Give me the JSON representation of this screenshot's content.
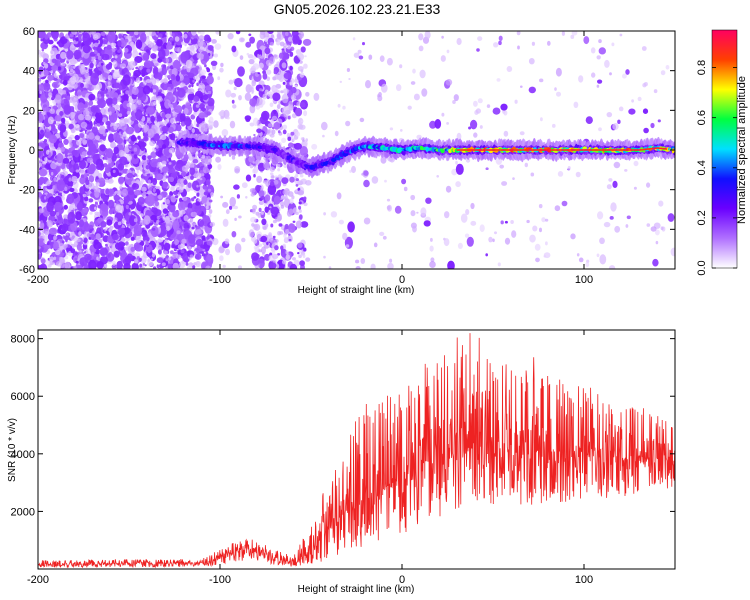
{
  "title": "GN05.2026.102.23.21.E33",
  "chart_data": [
    {
      "type": "heatmap",
      "xlabel": "Height of straight line (km)",
      "ylabel": "Frequency (Hz)",
      "xlim": [
        -200,
        150
      ],
      "ylim": [
        -60,
        60
      ],
      "x_ticks": [
        -200,
        -100,
        0,
        100
      ],
      "y_ticks": [
        -60,
        -40,
        -20,
        0,
        20,
        40,
        60
      ],
      "colorbar": {
        "label": "Normalized spectral amplitude",
        "range": [
          0,
          0.95
        ],
        "ticks": [
          0.0,
          0.2,
          0.4,
          0.6,
          0.8
        ],
        "colors": [
          "#ffffff",
          "#b070ff",
          "#6a00ff",
          "#1010ff",
          "#00e0ff",
          "#00ff40",
          "#ffff00",
          "#ff4000",
          "#ff0060"
        ]
      },
      "noise_regions": [
        {
          "x": [
            -200,
            -105
          ],
          "density": "high"
        },
        {
          "x": [
            -105,
            -83
          ],
          "density": "sparse"
        },
        {
          "x": [
            -83,
            -53
          ],
          "density": "medium"
        },
        {
          "x": [
            -53,
            150
          ],
          "density": "low"
        }
      ],
      "ridge": {
        "x": [
          -122,
          -110,
          -100,
          -90,
          -80,
          -70,
          -60,
          -50,
          -40,
          -30,
          -20,
          -10,
          0,
          10,
          20,
          30,
          40,
          50,
          60,
          70,
          80,
          90,
          100,
          110,
          120,
          130,
          140,
          150
        ],
        "frequency": [
          4,
          3,
          2,
          2,
          2,
          0,
          -5,
          -9,
          -6,
          -1,
          2,
          1,
          0,
          1,
          0,
          0,
          0,
          0,
          0,
          0,
          0,
          0,
          0,
          0,
          0,
          0,
          1,
          0
        ],
        "peak_amplitude": [
          0.3,
          0.4,
          0.45,
          0.4,
          0.35,
          0.3,
          0.3,
          0.35,
          0.35,
          0.45,
          0.5,
          0.55,
          0.55,
          0.6,
          0.6,
          0.75,
          0.85,
          0.85,
          0.8,
          0.85,
          0.85,
          0.85,
          0.85,
          0.85,
          0.8,
          0.8,
          0.75,
          0.7
        ]
      }
    },
    {
      "type": "line",
      "xlabel": "Height of straight line (km)",
      "ylabel": "SNR (10 * v/v)",
      "xlim": [
        -200,
        150
      ],
      "ylim": [
        0,
        8300
      ],
      "x_ticks": [
        -200,
        -100,
        0,
        100
      ],
      "y_ticks": [
        2000,
        4000,
        6000,
        8000
      ],
      "line_color": "#ee2222",
      "envelope": {
        "x": [
          -200,
          -110,
          -100,
          -90,
          -80,
          -70,
          -60,
          -50,
          -40,
          -30,
          -20,
          -10,
          0,
          10,
          20,
          30,
          40,
          50,
          60,
          70,
          80,
          90,
          100,
          110,
          120,
          130,
          140,
          150
        ],
        "low": [
          50,
          80,
          150,
          250,
          300,
          150,
          80,
          150,
          300,
          600,
          800,
          1000,
          1200,
          1500,
          1800,
          2000,
          2200,
          2200,
          2200,
          2200,
          2200,
          2300,
          2400,
          2400,
          2500,
          2500,
          2600,
          2800
        ],
        "mean": [
          150,
          220,
          380,
          650,
          700,
          400,
          200,
          600,
          1500,
          2000,
          2500,
          2800,
          3200,
          3600,
          4000,
          4200,
          4200,
          4100,
          4000,
          4100,
          4100,
          4000,
          4000,
          4000,
          3900,
          3800,
          3800,
          3700
        ],
        "high": [
          300,
          350,
          700,
          1000,
          1050,
          700,
          400,
          1600,
          3200,
          4600,
          5800,
          6000,
          6300,
          6800,
          7500,
          8200,
          8000,
          7200,
          7000,
          7200,
          7000,
          6600,
          6300,
          6100,
          5900,
          5700,
          5400,
          5000
        ]
      }
    }
  ]
}
